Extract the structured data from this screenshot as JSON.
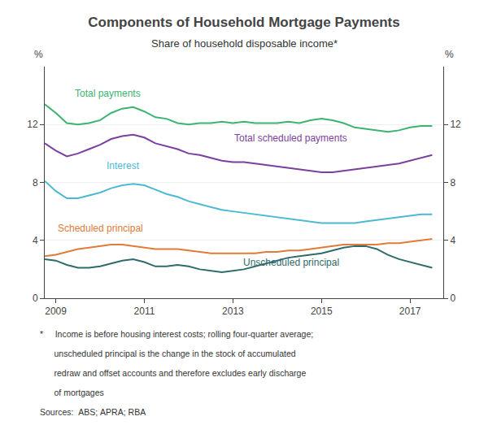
{
  "chart_data": {
    "type": "line",
    "title": "Components of Household Mortgage Payments",
    "subtitle": "Share of household disposable income*",
    "ylabel": "%",
    "y2label": "%",
    "xlim": [
      2008.75,
      2017.75
    ],
    "ylim": [
      0,
      16
    ],
    "yticks": [
      0,
      4,
      8,
      12
    ],
    "y2lim": [
      0,
      16
    ],
    "y2ticks": [
      0,
      4,
      8,
      12
    ],
    "xticks": [
      2009,
      2011,
      2013,
      2015,
      2017
    ],
    "grid": true,
    "x": [
      2008.75,
      2009.0,
      2009.25,
      2009.5,
      2009.75,
      2010.0,
      2010.25,
      2010.5,
      2010.75,
      2011.0,
      2011.25,
      2011.5,
      2011.75,
      2012.0,
      2012.25,
      2012.5,
      2012.75,
      2013.0,
      2013.25,
      2013.5,
      2013.75,
      2014.0,
      2014.25,
      2014.5,
      2014.75,
      2015.0,
      2015.25,
      2015.5,
      2015.75,
      2016.0,
      2016.25,
      2016.5,
      2016.75,
      2017.0,
      2017.25,
      2017.5
    ],
    "series": [
      {
        "name": "Total payments",
        "color": "#3cb371",
        "values": [
          13.4,
          12.8,
          12.1,
          12.0,
          12.1,
          12.3,
          12.8,
          13.1,
          13.2,
          12.9,
          12.5,
          12.4,
          12.1,
          12.0,
          12.1,
          12.1,
          12.2,
          12.1,
          12.2,
          12.1,
          12.1,
          12.1,
          12.2,
          12.1,
          12.3,
          12.4,
          12.3,
          12.1,
          11.8,
          11.7,
          11.6,
          11.5,
          11.6,
          11.8,
          11.9,
          11.9
        ]
      },
      {
        "name": "Total scheduled payments",
        "color": "#7b3fa0",
        "values": [
          10.7,
          10.2,
          9.8,
          10.0,
          10.3,
          10.6,
          11.0,
          11.2,
          11.3,
          11.1,
          10.7,
          10.5,
          10.3,
          10.0,
          9.9,
          9.7,
          9.5,
          9.4,
          9.4,
          9.3,
          9.2,
          9.1,
          9.0,
          8.9,
          8.8,
          8.7,
          8.7,
          8.8,
          8.9,
          9.0,
          9.1,
          9.2,
          9.3,
          9.5,
          9.7,
          9.9
        ]
      },
      {
        "name": "Interest",
        "color": "#4db8d4",
        "values": [
          8.1,
          7.4,
          6.9,
          6.9,
          7.1,
          7.3,
          7.6,
          7.8,
          7.9,
          7.8,
          7.5,
          7.2,
          7.0,
          6.7,
          6.5,
          6.3,
          6.1,
          6.0,
          5.9,
          5.8,
          5.7,
          5.6,
          5.5,
          5.4,
          5.3,
          5.2,
          5.2,
          5.2,
          5.2,
          5.3,
          5.4,
          5.5,
          5.6,
          5.7,
          5.8,
          5.8
        ]
      },
      {
        "name": "Scheduled principal",
        "color": "#e07b39",
        "values": [
          2.9,
          3.0,
          3.2,
          3.4,
          3.5,
          3.6,
          3.7,
          3.7,
          3.6,
          3.5,
          3.4,
          3.4,
          3.4,
          3.3,
          3.2,
          3.1,
          3.1,
          3.1,
          3.1,
          3.1,
          3.2,
          3.2,
          3.3,
          3.3,
          3.4,
          3.5,
          3.6,
          3.7,
          3.7,
          3.7,
          3.7,
          3.8,
          3.8,
          3.9,
          4.0,
          4.1
        ]
      },
      {
        "name": "Unscheduled principal",
        "color": "#2f6b6b",
        "values": [
          2.7,
          2.6,
          2.3,
          2.1,
          2.1,
          2.2,
          2.4,
          2.6,
          2.7,
          2.5,
          2.2,
          2.2,
          2.3,
          2.2,
          2.0,
          1.9,
          1.8,
          1.9,
          2.0,
          2.2,
          2.4,
          2.6,
          2.8,
          2.9,
          3.0,
          3.1,
          3.3,
          3.5,
          3.6,
          3.6,
          3.4,
          3.0,
          2.7,
          2.5,
          2.3,
          2.1
        ]
      }
    ],
    "annotations": [
      {
        "text": "Total payments",
        "x": 2009.4,
        "y": 13.65,
        "color": "#3cb371"
      },
      {
        "text": "Total scheduled payments",
        "x": 2013.0,
        "y": 10.55,
        "color": "#7b3fa0"
      },
      {
        "text": "Interest",
        "x": 2010.1,
        "y": 8.65,
        "color": "#4db8d4"
      },
      {
        "text": "Scheduled principal",
        "x": 2009.0,
        "y": 4.35,
        "color": "#e07b39"
      },
      {
        "text": "Unscheduled principal",
        "x": 2013.2,
        "y": 1.95,
        "color": "#2f6b6b"
      }
    ],
    "notes": [
      "*     Income is before housing interest costs; rolling four-quarter average;",
      "      unscheduled principal is the change in the stock of accumulated",
      "      redraw and offset accounts and therefore excludes early discharge",
      "      of mortgages"
    ],
    "source": "Sources:  ABS; APRA; RBA"
  }
}
